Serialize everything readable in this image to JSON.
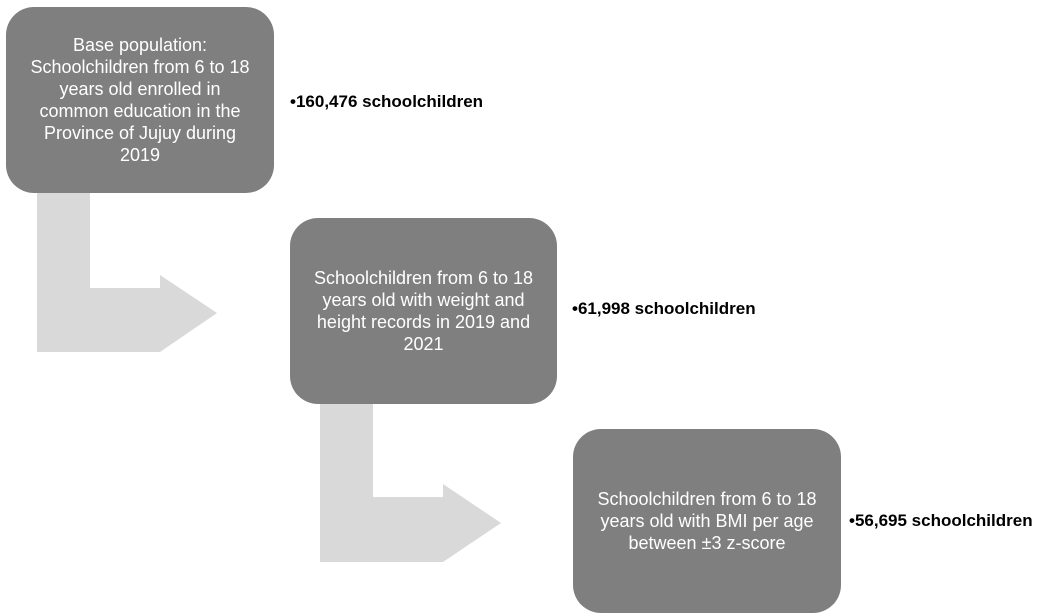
{
  "flow": {
    "arrow_color": "#d9d9d9",
    "box_color": "#7f7f7f",
    "steps": [
      {
        "text": "Base population:\nSchoolchildren from 6 to 18\nyears old enrolled in\ncommon education in the\nProvince of Jujuy during\n2019",
        "count": "•160,476 schoolchildren"
      },
      {
        "text": "Schoolchildren from 6 to 18\nyears old with weight and\nheight records in 2019 and\n2021",
        "count": "•61,998 schoolchildren"
      },
      {
        "text": "Schoolchildren from 6 to 18\nyears old with BMI per age\nbetween ±3 z-score",
        "count": "•56,695 schoolchildren"
      }
    ]
  }
}
